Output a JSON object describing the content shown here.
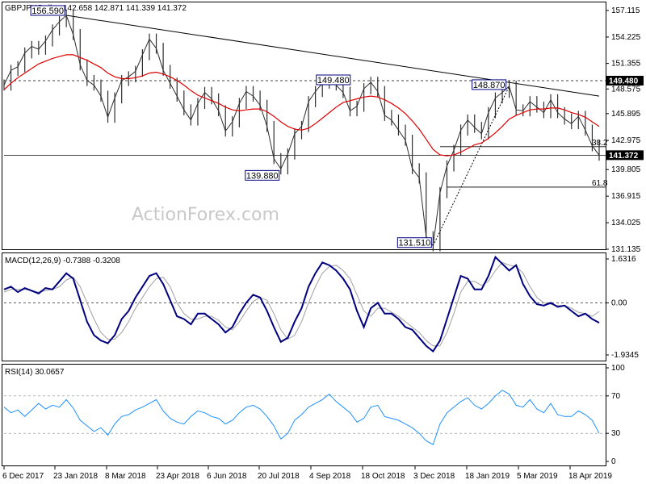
{
  "header": {
    "symbol": "GBPJPY,Daily",
    "ohlc": "142.658 142.871 141.339 141.372",
    "watermark": "ActionForex.com"
  },
  "colors": {
    "price_bars": "#2e2e2e",
    "ma": "#e00000",
    "trendline": "#000000",
    "macd_line": "#000080",
    "macd_signal": "#a0a0a0",
    "rsi_line": "#1e90ff",
    "annotation_box": "#000080",
    "current_price_box": "#000000"
  },
  "chart_data": [
    {
      "type": "line",
      "title": "GBPJPY,Daily",
      "subtitle": "142.658 142.871 141.339 141.372",
      "ylim": [
        131.135,
        157.115
      ],
      "y_ticks": [
        "157.115",
        "154.225",
        "151.355",
        "148.575",
        "145.895",
        "142.975",
        "139.805",
        "136.915",
        "134.025",
        "131.135"
      ],
      "x_ticks": [
        "6 Dec 2017",
        "23 Jan 2018",
        "8 Mar 2018",
        "23 Apr 2018",
        "6 Jun 2018",
        "20 Jul 2018",
        "4 Sep 2018",
        "18 Oct 2018",
        "3 Dec 2018",
        "18 Jan 2019",
        "5 Mar 2019",
        "18 Apr 2019"
      ],
      "series": [
        {
          "values": [
            149.0,
            150.6,
            151.0,
            152.5,
            153.2,
            152.9,
            153.8,
            155.0,
            155.9,
            156.59,
            154.5,
            151.2,
            149.5,
            149.0,
            147.8,
            145.5,
            147.6,
            149.5,
            149.9,
            150.5,
            152.3,
            154.0,
            153.0,
            150.6,
            149.2,
            147.8,
            146.3,
            145.2,
            147.0,
            148.2,
            147.5,
            146.2,
            144.0,
            145.0,
            147.0,
            148.3,
            147.8,
            146.8,
            144.5,
            141.0,
            139.88,
            141.5,
            143.7,
            144.5,
            147.2,
            148.3,
            149.2,
            149.48,
            149.0,
            148.2,
            146.2,
            146.7,
            148.6,
            149.3,
            148.3,
            145.7,
            145.2,
            144.1,
            143.0,
            139.9,
            138.9,
            132.5,
            131.51,
            137.3,
            140.2,
            141.9,
            144.1,
            145.2,
            144.4,
            143.7,
            146.0,
            147.6,
            148.2,
            148.87,
            146.3,
            146.2,
            147.2,
            146.6,
            146.0,
            147.4,
            146.0,
            145.3,
            144.8,
            145.6,
            144.1,
            142.4,
            141.372
          ]
        },
        {
          "values": [
            148.5,
            149.2,
            149.8,
            150.3,
            150.8,
            151.3,
            151.6,
            151.9,
            152.1,
            152.3,
            152.3,
            152.0,
            151.7,
            151.3,
            150.9,
            150.3,
            149.9,
            149.7,
            149.7,
            149.8,
            150.0,
            150.3,
            150.4,
            150.2,
            149.9,
            149.5,
            149.0,
            148.4,
            147.9,
            147.6,
            147.3,
            147.0,
            146.6,
            146.3,
            146.2,
            146.3,
            146.4,
            146.4,
            146.1,
            145.6,
            145.0,
            144.5,
            144.2,
            144.1,
            144.3,
            144.8,
            145.4,
            146.0,
            146.6,
            147.1,
            147.3,
            147.5,
            147.7,
            147.8,
            147.7,
            147.4,
            147.0,
            146.5,
            145.9,
            145.1,
            144.2,
            143.1,
            142.0,
            141.4,
            141.3,
            141.4,
            141.7,
            142.1,
            142.5,
            142.7,
            143.2,
            143.8,
            144.5,
            145.3,
            145.7,
            146.0,
            146.3,
            146.4,
            146.4,
            146.5,
            146.5,
            146.3,
            146.0,
            145.8,
            145.5,
            145.0,
            144.5
          ]
        }
      ],
      "annotations": [
        {
          "label": "156.590",
          "index": 9,
          "value": 156.59
        },
        {
          "label": "139.880",
          "index": 40,
          "value": 139.88
        },
        {
          "label": "149.480",
          "index": 47,
          "value": 149.48
        },
        {
          "label": "131.510",
          "index": 62,
          "value": 131.51
        },
        {
          "label": "148.870",
          "index": 73,
          "value": 148.87
        }
      ],
      "levels": [
        {
          "value": 149.48,
          "style": "dashed"
        },
        {
          "value": 141.372,
          "style": "solid"
        },
        {
          "value": 142.3,
          "style": "solid",
          "label": "38.2"
        },
        {
          "value": 137.9,
          "style": "solid",
          "label": "61.8"
        }
      ],
      "price_boxes": [
        "149.480",
        "141.372"
      ],
      "trendlines": [
        {
          "from": [
            9,
            156.59
          ],
          "to": [
            86,
            147.8
          ]
        },
        {
          "from": [
            62,
            131.51
          ],
          "to": [
            73,
            148.87
          ],
          "style": "dashed"
        }
      ]
    },
    {
      "type": "line",
      "title": "MACD(12,26,9) -0.7388 -0.3208",
      "ylim": [
        -1.9345,
        1.6316
      ],
      "y_ticks": [
        "1.6316",
        "0.00",
        "-1.9345"
      ],
      "series": [
        {
          "values": [
            0.5,
            0.6,
            0.4,
            0.55,
            0.45,
            0.35,
            0.55,
            0.5,
            0.8,
            1.1,
            0.9,
            0.1,
            -0.7,
            -1.2,
            -1.4,
            -1.5,
            -1.2,
            -0.6,
            -0.3,
            0.2,
            0.6,
            1.0,
            1.1,
            0.7,
            0.1,
            -0.5,
            -0.6,
            -0.8,
            -0.4,
            -0.4,
            -0.6,
            -0.8,
            -1.1,
            -0.9,
            -0.4,
            0.0,
            0.3,
            0.2,
            -0.3,
            -0.9,
            -1.45,
            -1.3,
            -0.7,
            -0.2,
            0.6,
            1.1,
            1.5,
            1.4,
            1.2,
            0.9,
            0.5,
            -0.3,
            -0.9,
            -0.2,
            0.0,
            -0.4,
            -0.4,
            -0.6,
            -0.9,
            -1.0,
            -1.3,
            -1.6,
            -1.8,
            -1.4,
            -0.6,
            0.2,
            1.0,
            0.9,
            0.5,
            0.5,
            1.0,
            1.7,
            1.45,
            1.2,
            1.4,
            0.7,
            0.25,
            -0.05,
            -0.1,
            0.0,
            -0.15,
            -0.1,
            -0.3,
            -0.5,
            -0.4,
            -0.6,
            -0.74
          ]
        },
        {
          "values": [
            0.4,
            0.5,
            0.5,
            0.5,
            0.45,
            0.4,
            0.45,
            0.5,
            0.6,
            0.85,
            0.95,
            0.6,
            0.0,
            -0.6,
            -1.1,
            -1.35,
            -1.35,
            -1.1,
            -0.7,
            -0.2,
            0.2,
            0.6,
            0.9,
            0.95,
            0.6,
            0.0,
            -0.4,
            -0.6,
            -0.6,
            -0.5,
            -0.5,
            -0.65,
            -0.9,
            -1.0,
            -0.7,
            -0.3,
            0.05,
            0.2,
            0.1,
            -0.4,
            -1.0,
            -1.35,
            -1.2,
            -0.7,
            0.0,
            0.6,
            1.1,
            1.35,
            1.4,
            1.2,
            0.9,
            0.3,
            -0.3,
            -0.5,
            -0.2,
            -0.2,
            -0.35,
            -0.5,
            -0.7,
            -0.9,
            -1.1,
            -1.4,
            -1.6,
            -1.6,
            -1.1,
            -0.4,
            0.4,
            0.8,
            0.8,
            0.65,
            0.8,
            1.2,
            1.5,
            1.4,
            1.35,
            1.1,
            0.6,
            0.2,
            0.0,
            -0.05,
            -0.1,
            -0.1,
            -0.2,
            -0.35,
            -0.4,
            -0.5,
            -0.32
          ]
        }
      ]
    },
    {
      "type": "line",
      "title": "RSI(14) 30.0657",
      "ylim": [
        0,
        100
      ],
      "y_ticks": [
        "100",
        "70",
        "30",
        "0"
      ],
      "series": [
        {
          "values": [
            58,
            52,
            55,
            48,
            55,
            62,
            56,
            60,
            58,
            66,
            57,
            44,
            38,
            32,
            36,
            28,
            40,
            48,
            50,
            55,
            58,
            62,
            66,
            54,
            46,
            42,
            40,
            48,
            54,
            52,
            48,
            46,
            40,
            44,
            52,
            58,
            60,
            56,
            48,
            38,
            24,
            30,
            44,
            50,
            58,
            62,
            66,
            72,
            64,
            58,
            52,
            42,
            46,
            58,
            60,
            48,
            46,
            44,
            40,
            36,
            30,
            22,
            18,
            40,
            52,
            58,
            64,
            68,
            60,
            56,
            62,
            70,
            76,
            72,
            60,
            58,
            66,
            56,
            52,
            62,
            50,
            48,
            48,
            54,
            50,
            44,
            30
          ]
        }
      ]
    }
  ]
}
